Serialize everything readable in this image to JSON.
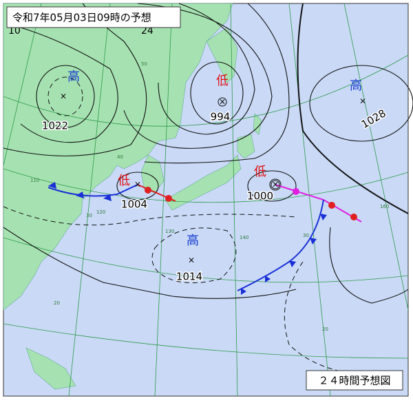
{
  "header": {
    "title": "令和7年05月03日09時の予想"
  },
  "caption": "２４時間予想図",
  "systems": [
    {
      "kind": "高",
      "pressure": 1022
    },
    {
      "kind": "低",
      "pressure": 994
    },
    {
      "kind": "高",
      "pressure": 1028
    },
    {
      "kind": "低",
      "pressure": 1004
    },
    {
      "kind": "低",
      "pressure": 1000
    },
    {
      "kind": "高",
      "pressure": 1014
    }
  ],
  "isobar_fragments": [
    "10",
    "24"
  ],
  "grid_labels": [
    "50",
    "40",
    "30",
    "30",
    "20",
    "20",
    "140",
    "130",
    "120",
    "110",
    "160"
  ]
}
